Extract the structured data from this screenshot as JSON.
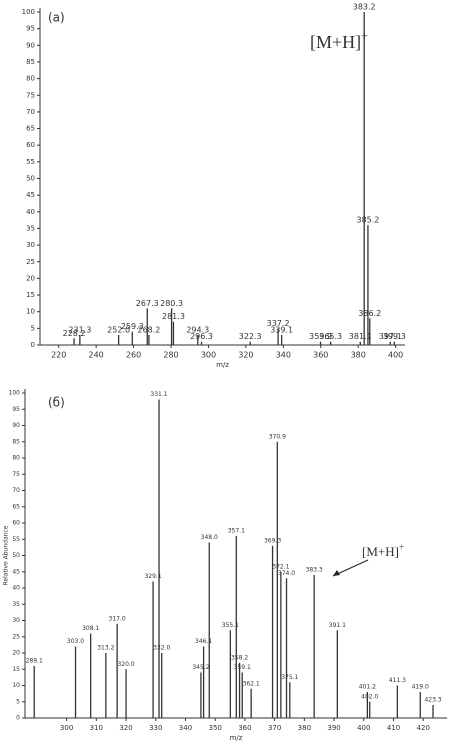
{
  "chart_data": [
    {
      "type": "spectrum",
      "title": "(a)",
      "annotation": "[M+H]",
      "annotation_sup": "+",
      "annotation_arrow": false,
      "xlabel": "m/z",
      "color": "#333333",
      "x": [
        228.2,
        231.3,
        252.0,
        259.3,
        267.3,
        268.2,
        280.3,
        281.3,
        294.3,
        296.3,
        322.3,
        337.2,
        339.1,
        359.9,
        365.3,
        381.1,
        383.2,
        385.2,
        386.2,
        397.1,
        399.3
      ],
      "values": [
        2,
        3,
        3,
        4,
        11,
        3,
        11,
        7,
        3,
        1,
        1,
        5,
        3,
        1,
        1,
        1,
        100,
        36,
        8,
        1,
        1
      ],
      "labels": [
        "228.2",
        "231.3",
        "252.0",
        "259.3",
        "267.3",
        "268.2",
        "280.3",
        "281.3",
        "294.3",
        "296.3",
        "322.3",
        "337.2",
        "339.1",
        "359.9",
        "365.3",
        "381.1",
        "383.2",
        "385.2",
        "386.2",
        "397.1",
        "399.3"
      ],
      "xlim": [
        210,
        405
      ],
      "xticks": [
        220,
        240,
        260,
        280,
        300,
        320,
        340,
        360,
        380,
        400
      ],
      "ylim": [
        0,
        100
      ],
      "yticks": [
        0,
        5,
        10,
        15,
        20,
        25,
        30,
        35,
        40,
        45,
        50,
        55,
        60,
        65,
        70,
        75,
        80,
        85,
        90,
        95,
        100
      ]
    },
    {
      "type": "spectrum",
      "title": "(б)",
      "annotation": "[M+H]",
      "annotation_sup": "+",
      "annotation_arrow": true,
      "xlabel": "m/z",
      "ylabel": "Relative Abundance",
      "color": "#333333",
      "x": [
        289.1,
        303.0,
        308.1,
        313.2,
        317.0,
        320.0,
        329.1,
        331.1,
        332.0,
        345.2,
        346.1,
        348.0,
        355.1,
        357.1,
        358.2,
        359.1,
        362.1,
        369.3,
        370.9,
        372.1,
        374.0,
        375.1,
        383.3,
        391.1,
        401.2,
        402.0,
        411.3,
        419.0,
        423.3
      ],
      "values": [
        16,
        22,
        26,
        20,
        29,
        15,
        42,
        98,
        20,
        14,
        22,
        54,
        27,
        56,
        17,
        14,
        9,
        53,
        85,
        45,
        43,
        11,
        44,
        27,
        8,
        5,
        10,
        8,
        4
      ],
      "labels": [
        "289.1",
        "303.0",
        "308.1",
        "313.2",
        "317.0",
        "320.0",
        "329.1",
        "331.1",
        "332.0",
        "345.2",
        "346.1",
        "348.0",
        "355.1",
        "357.1",
        "358.2",
        "359.1",
        "362.1",
        "369.3",
        "370.9",
        "372.1",
        "374.0",
        "375.1",
        "383.3",
        "391.1",
        "401.2",
        "402.0",
        "411.3",
        "419.0",
        "423.3"
      ],
      "xlim": [
        286,
        428
      ],
      "xticks": [
        300,
        310,
        320,
        330,
        340,
        350,
        360,
        370,
        380,
        390,
        400,
        410,
        420
      ],
      "ylim": [
        0,
        100
      ],
      "yticks": [
        0,
        5,
        10,
        15,
        20,
        25,
        30,
        35,
        40,
        45,
        50,
        55,
        60,
        65,
        70,
        75,
        80,
        85,
        90,
        95,
        100
      ]
    }
  ]
}
